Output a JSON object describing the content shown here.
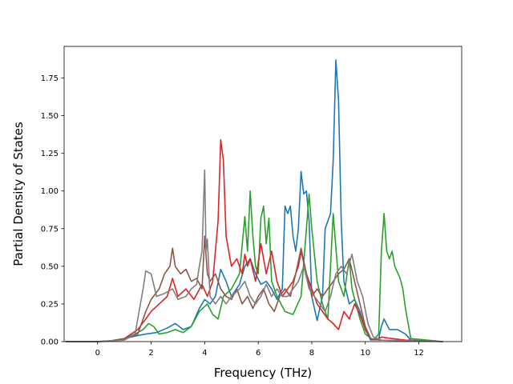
{
  "chart_data": {
    "type": "line",
    "title": "",
    "xlabel": "Frequency (THz)",
    "ylabel": "Partial Density of States",
    "xlim": [
      -1.25,
      13.6
    ],
    "ylim": [
      0,
      1.96
    ],
    "xticks": [
      0,
      2,
      4,
      6,
      8,
      10,
      12
    ],
    "yticks": [
      0.0,
      0.25,
      0.5,
      0.75,
      1.0,
      1.25,
      1.5,
      1.75
    ],
    "xtick_labels": [
      "0",
      "2",
      "4",
      "6",
      "8",
      "10",
      "12"
    ],
    "ytick_labels": [
      "0.00",
      "0.25",
      "0.50",
      "0.75",
      "1.00",
      "1.25",
      "1.50",
      "1.75"
    ],
    "grid": false,
    "legend": "none",
    "series": [
      {
        "color": "#1f77b4",
        "points": [
          [
            -1.2,
            0
          ],
          [
            0,
            0
          ],
          [
            0.5,
            0.005
          ],
          [
            1.0,
            0.02
          ],
          [
            1.5,
            0.04
          ],
          [
            1.8,
            0.05
          ],
          [
            2.2,
            0.06
          ],
          [
            2.6,
            0.09
          ],
          [
            2.9,
            0.12
          ],
          [
            3.2,
            0.08
          ],
          [
            3.5,
            0.1
          ],
          [
            3.8,
            0.22
          ],
          [
            4.0,
            0.28
          ],
          [
            4.2,
            0.25
          ],
          [
            4.4,
            0.3
          ],
          [
            4.6,
            0.48
          ],
          [
            4.8,
            0.4
          ],
          [
            5.0,
            0.3
          ],
          [
            5.3,
            0.38
          ],
          [
            5.5,
            0.5
          ],
          [
            5.7,
            0.55
          ],
          [
            5.9,
            0.45
          ],
          [
            6.1,
            0.38
          ],
          [
            6.3,
            0.4
          ],
          [
            6.5,
            0.35
          ],
          [
            6.7,
            0.28
          ],
          [
            6.9,
            0.35
          ],
          [
            7.0,
            0.9
          ],
          [
            7.1,
            0.85
          ],
          [
            7.2,
            0.9
          ],
          [
            7.3,
            0.7
          ],
          [
            7.4,
            0.6
          ],
          [
            7.5,
            0.75
          ],
          [
            7.6,
            1.13
          ],
          [
            7.7,
            0.98
          ],
          [
            7.8,
            1.0
          ],
          [
            7.9,
            0.8
          ],
          [
            8.0,
            0.3
          ],
          [
            8.2,
            0.14
          ],
          [
            8.4,
            0.3
          ],
          [
            8.5,
            0.75
          ],
          [
            8.7,
            0.85
          ],
          [
            8.8,
            1.2
          ],
          [
            8.9,
            1.87
          ],
          [
            9.0,
            1.6
          ],
          [
            9.1,
            0.8
          ],
          [
            9.2,
            0.4
          ],
          [
            9.4,
            0.25
          ],
          [
            9.6,
            0.28
          ],
          [
            9.8,
            0.2
          ],
          [
            10.0,
            0.08
          ],
          [
            10.2,
            0.01
          ],
          [
            10.5,
            0.02
          ],
          [
            10.6,
            0.1
          ],
          [
            10.7,
            0.15
          ],
          [
            10.9,
            0.08
          ],
          [
            11.2,
            0.08
          ],
          [
            11.5,
            0.05
          ],
          [
            11.7,
            0.01
          ],
          [
            12.9,
            0
          ]
        ]
      },
      {
        "color": "#2ca02c",
        "points": [
          [
            -1.2,
            0
          ],
          [
            0,
            0
          ],
          [
            0.5,
            0.005
          ],
          [
            1.0,
            0.02
          ],
          [
            1.5,
            0.06
          ],
          [
            1.7,
            0.08
          ],
          [
            1.9,
            0.12
          ],
          [
            2.1,
            0.1
          ],
          [
            2.3,
            0.05
          ],
          [
            2.6,
            0.06
          ],
          [
            2.9,
            0.08
          ],
          [
            3.2,
            0.06
          ],
          [
            3.5,
            0.1
          ],
          [
            3.8,
            0.2
          ],
          [
            4.1,
            0.25
          ],
          [
            4.3,
            0.18
          ],
          [
            4.5,
            0.15
          ],
          [
            4.7,
            0.3
          ],
          [
            5.0,
            0.35
          ],
          [
            5.3,
            0.45
          ],
          [
            5.5,
            0.83
          ],
          [
            5.6,
            0.6
          ],
          [
            5.7,
            1.0
          ],
          [
            5.8,
            0.7
          ],
          [
            5.9,
            0.5
          ],
          [
            6.0,
            0.45
          ],
          [
            6.1,
            0.82
          ],
          [
            6.2,
            0.9
          ],
          [
            6.3,
            0.65
          ],
          [
            6.4,
            0.82
          ],
          [
            6.5,
            0.4
          ],
          [
            6.7,
            0.3
          ],
          [
            7.0,
            0.2
          ],
          [
            7.3,
            0.18
          ],
          [
            7.6,
            0.3
          ],
          [
            7.8,
            0.75
          ],
          [
            7.9,
            0.98
          ],
          [
            8.0,
            0.75
          ],
          [
            8.2,
            0.4
          ],
          [
            8.4,
            0.25
          ],
          [
            8.6,
            0.15
          ],
          [
            8.8,
            0.85
          ],
          [
            9.0,
            0.4
          ],
          [
            9.2,
            0.3
          ],
          [
            9.4,
            0.55
          ],
          [
            9.5,
            0.35
          ],
          [
            9.8,
            0.15
          ],
          [
            10.0,
            0.05
          ],
          [
            10.3,
            0.01
          ],
          [
            10.5,
            0.05
          ],
          [
            10.6,
            0.6
          ],
          [
            10.7,
            0.85
          ],
          [
            10.8,
            0.6
          ],
          [
            10.9,
            0.55
          ],
          [
            11.0,
            0.6
          ],
          [
            11.1,
            0.5
          ],
          [
            11.3,
            0.42
          ],
          [
            11.4,
            0.35
          ],
          [
            11.5,
            0.22
          ],
          [
            11.7,
            0.02
          ],
          [
            12.9,
            0
          ]
        ]
      },
      {
        "color": "#d62728",
        "points": [
          [
            -1.2,
            0
          ],
          [
            0,
            0
          ],
          [
            0.5,
            0.005
          ],
          [
            1.0,
            0.02
          ],
          [
            1.5,
            0.08
          ],
          [
            1.8,
            0.15
          ],
          [
            2.0,
            0.2
          ],
          [
            2.3,
            0.25
          ],
          [
            2.6,
            0.3
          ],
          [
            2.8,
            0.42
          ],
          [
            3.0,
            0.3
          ],
          [
            3.3,
            0.35
          ],
          [
            3.6,
            0.28
          ],
          [
            3.9,
            0.38
          ],
          [
            4.1,
            0.3
          ],
          [
            4.3,
            0.4
          ],
          [
            4.5,
            0.8
          ],
          [
            4.6,
            1.34
          ],
          [
            4.7,
            1.2
          ],
          [
            4.8,
            0.7
          ],
          [
            5.0,
            0.5
          ],
          [
            5.2,
            0.55
          ],
          [
            5.4,
            0.45
          ],
          [
            5.5,
            0.58
          ],
          [
            5.6,
            0.5
          ],
          [
            5.7,
            0.55
          ],
          [
            5.9,
            0.4
          ],
          [
            6.1,
            0.65
          ],
          [
            6.3,
            0.45
          ],
          [
            6.5,
            0.6
          ],
          [
            6.7,
            0.4
          ],
          [
            6.9,
            0.3
          ],
          [
            7.1,
            0.35
          ],
          [
            7.3,
            0.4
          ],
          [
            7.5,
            0.5
          ],
          [
            7.6,
            0.6
          ],
          [
            7.8,
            0.45
          ],
          [
            8.0,
            0.35
          ],
          [
            8.2,
            0.25
          ],
          [
            8.4,
            0.2
          ],
          [
            8.6,
            0.15
          ],
          [
            8.8,
            0.12
          ],
          [
            9.0,
            0.08
          ],
          [
            9.2,
            0.2
          ],
          [
            9.4,
            0.15
          ],
          [
            9.6,
            0.25
          ],
          [
            9.8,
            0.18
          ],
          [
            10.0,
            0.08
          ],
          [
            10.2,
            0.02
          ],
          [
            10.4,
            0.01
          ],
          [
            10.6,
            0.03
          ],
          [
            11.0,
            0.02
          ],
          [
            11.5,
            0.01
          ],
          [
            12.9,
            0
          ]
        ]
      },
      {
        "color": "#8c564b",
        "points": [
          [
            -1.2,
            0
          ],
          [
            0,
            0
          ],
          [
            0.5,
            0.005
          ],
          [
            1.0,
            0.02
          ],
          [
            1.5,
            0.05
          ],
          [
            1.8,
            0.2
          ],
          [
            2.0,
            0.28
          ],
          [
            2.3,
            0.35
          ],
          [
            2.5,
            0.45
          ],
          [
            2.7,
            0.5
          ],
          [
            2.8,
            0.62
          ],
          [
            2.9,
            0.5
          ],
          [
            3.1,
            0.45
          ],
          [
            3.3,
            0.48
          ],
          [
            3.5,
            0.4
          ],
          [
            3.7,
            0.42
          ],
          [
            3.9,
            0.35
          ],
          [
            4.0,
            0.7
          ],
          [
            4.1,
            0.45
          ],
          [
            4.2,
            0.4
          ],
          [
            4.4,
            0.45
          ],
          [
            4.6,
            0.35
          ],
          [
            4.8,
            0.3
          ],
          [
            5.0,
            0.28
          ],
          [
            5.2,
            0.35
          ],
          [
            5.4,
            0.25
          ],
          [
            5.6,
            0.3
          ],
          [
            5.8,
            0.22
          ],
          [
            6.0,
            0.3
          ],
          [
            6.2,
            0.35
          ],
          [
            6.4,
            0.25
          ],
          [
            6.6,
            0.2
          ],
          [
            6.8,
            0.3
          ],
          [
            7.0,
            0.35
          ],
          [
            7.2,
            0.3
          ],
          [
            7.4,
            0.45
          ],
          [
            7.6,
            0.62
          ],
          [
            7.8,
            0.45
          ],
          [
            8.0,
            0.3
          ],
          [
            8.2,
            0.35
          ],
          [
            8.4,
            0.3
          ],
          [
            8.6,
            0.35
          ],
          [
            8.8,
            0.4
          ],
          [
            9.0,
            0.45
          ],
          [
            9.2,
            0.48
          ],
          [
            9.4,
            0.55
          ],
          [
            9.6,
            0.4
          ],
          [
            9.8,
            0.25
          ],
          [
            10.0,
            0.1
          ],
          [
            10.2,
            0.02
          ],
          [
            10.5,
            0.01
          ],
          [
            12.9,
            0
          ]
        ]
      },
      {
        "color": "#7f7f7f",
        "points": [
          [
            -1.2,
            0
          ],
          [
            0,
            0
          ],
          [
            0.5,
            0.005
          ],
          [
            1.0,
            0.01
          ],
          [
            1.4,
            0.05
          ],
          [
            1.7,
            0.35
          ],
          [
            1.8,
            0.47
          ],
          [
            2.0,
            0.45
          ],
          [
            2.2,
            0.3
          ],
          [
            2.5,
            0.32
          ],
          [
            2.8,
            0.35
          ],
          [
            3.0,
            0.28
          ],
          [
            3.3,
            0.3
          ],
          [
            3.5,
            0.35
          ],
          [
            3.7,
            0.38
          ],
          [
            3.8,
            0.5
          ],
          [
            3.9,
            0.6
          ],
          [
            4.0,
            1.14
          ],
          [
            4.05,
            0.6
          ],
          [
            4.1,
            0.68
          ],
          [
            4.2,
            0.3
          ],
          [
            4.4,
            0.25
          ],
          [
            4.6,
            0.3
          ],
          [
            4.8,
            0.25
          ],
          [
            5.0,
            0.3
          ],
          [
            5.3,
            0.35
          ],
          [
            5.5,
            0.4
          ],
          [
            5.7,
            0.3
          ],
          [
            5.9,
            0.25
          ],
          [
            6.1,
            0.3
          ],
          [
            6.3,
            0.38
          ],
          [
            6.5,
            0.3
          ],
          [
            6.7,
            0.35
          ],
          [
            6.9,
            0.3
          ],
          [
            7.1,
            0.3
          ],
          [
            7.3,
            0.35
          ],
          [
            7.5,
            0.4
          ],
          [
            7.7,
            0.5
          ],
          [
            7.9,
            0.35
          ],
          [
            8.1,
            0.3
          ],
          [
            8.3,
            0.25
          ],
          [
            8.5,
            0.2
          ],
          [
            8.7,
            0.3
          ],
          [
            8.9,
            0.45
          ],
          [
            9.1,
            0.5
          ],
          [
            9.3,
            0.45
          ],
          [
            9.5,
            0.58
          ],
          [
            9.7,
            0.4
          ],
          [
            9.9,
            0.3
          ],
          [
            10.1,
            0.12
          ],
          [
            10.3,
            0.03
          ],
          [
            10.6,
            0.01
          ],
          [
            12.9,
            0
          ]
        ]
      }
    ]
  }
}
